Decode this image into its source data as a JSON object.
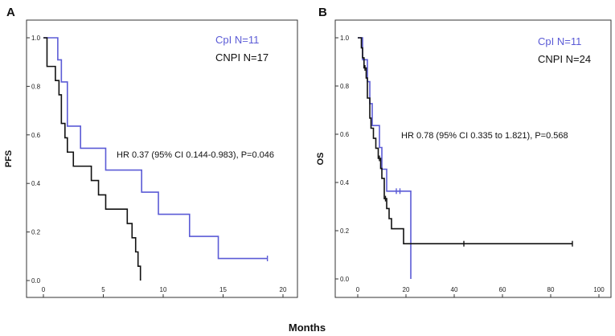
{
  "figure": {
    "shared_xlabel": "Months"
  },
  "colors": {
    "cpi": "#5b5bd6",
    "cnpi": "#111111",
    "frame": "#333333"
  },
  "chart_data": [
    {
      "type": "line",
      "step": true,
      "panel_label": "A",
      "title": "",
      "xlabel": "Months",
      "ylabel": "PFS",
      "xlim": [
        0,
        20
      ],
      "ylim": [
        0,
        1
      ],
      "xticks": [
        0,
        5,
        10,
        15,
        20
      ],
      "yticks": [
        0.0,
        0.2,
        0.4,
        0.6,
        0.8,
        1.0
      ],
      "xtick_labels": [
        "0",
        "5",
        "10",
        "15",
        "20"
      ],
      "ytick_labels": [
        "0.0",
        "0.2",
        "0.4",
        "0.6",
        "0.8",
        "1.0"
      ],
      "legend": [
        {
          "label": "CpI N=11",
          "color": "#5b5bd6"
        },
        {
          "label": "CNPI N=17",
          "color": "#111111"
        }
      ],
      "annotation": "HR 0.37 (95% CI 0.144-0.983), P=0.046",
      "series": [
        {
          "name": "CpI N=11",
          "color": "#5b5bd6",
          "steps": [
            [
              0,
              1.0
            ],
            [
              1.2,
              0.909
            ],
            [
              1.5,
              0.818
            ],
            [
              2.0,
              0.636
            ],
            [
              3.1,
              0.545
            ],
            [
              5.2,
              0.455
            ],
            [
              8.2,
              0.364
            ],
            [
              9.6,
              0.273
            ],
            [
              12.2,
              0.182
            ],
            [
              14.6,
              0.091
            ]
          ],
          "end": 18.7,
          "censored": [
            18.7
          ]
        },
        {
          "name": "CNPI N=17",
          "color": "#111111",
          "steps": [
            [
              0,
              1.0
            ],
            [
              0.3,
              0.882
            ],
            [
              1.0,
              0.824
            ],
            [
              1.3,
              0.765
            ],
            [
              1.5,
              0.647
            ],
            [
              1.8,
              0.588
            ],
            [
              2.0,
              0.529
            ],
            [
              2.5,
              0.471
            ],
            [
              4.0,
              0.412
            ],
            [
              4.6,
              0.353
            ],
            [
              5.2,
              0.294
            ],
            [
              7.0,
              0.235
            ],
            [
              7.4,
              0.176
            ],
            [
              7.7,
              0.118
            ],
            [
              7.9,
              0.059
            ],
            [
              8.1,
              0.0
            ]
          ],
          "end": 8.1,
          "censored": []
        }
      ]
    },
    {
      "type": "line",
      "step": true,
      "panel_label": "B",
      "title": "",
      "xlabel": "Months",
      "ylabel": "OS",
      "xlim": [
        0,
        100
      ],
      "ylim": [
        0,
        1
      ],
      "xticks": [
        0,
        20,
        40,
        60,
        80,
        100
      ],
      "yticks": [
        0.0,
        0.2,
        0.4,
        0.6,
        0.8,
        1.0
      ],
      "xtick_labels": [
        "0",
        "20",
        "40",
        "60",
        "80",
        "100"
      ],
      "ytick_labels": [
        "0.0",
        "0.2",
        "0.4",
        "0.6",
        "0.8",
        "1.0"
      ],
      "legend": [
        {
          "label": "CpI N=11",
          "color": "#5b5bd6"
        },
        {
          "label": "CNPI N=24",
          "color": "#111111"
        }
      ],
      "annotation": "HR 0.78 (95% CI 0.335 to 1.821), P=0.568",
      "series": [
        {
          "name": "CpI N=11",
          "color": "#5b5bd6",
          "steps": [
            [
              0,
              1.0
            ],
            [
              2.0,
              0.909
            ],
            [
              4.0,
              0.818
            ],
            [
              5.0,
              0.727
            ],
            [
              6.0,
              0.636
            ],
            [
              9.0,
              0.545
            ],
            [
              10.0,
              0.455
            ],
            [
              12.0,
              0.364
            ],
            [
              22.0,
              0.0
            ]
          ],
          "end": 22.0,
          "censored": [
            16.0,
            17.5
          ]
        },
        {
          "name": "CNPI N=24",
          "color": "#111111",
          "steps": [
            [
              0,
              1.0
            ],
            [
              1.5,
              0.958
            ],
            [
              2.0,
              0.917
            ],
            [
              2.6,
              0.875
            ],
            [
              3.5,
              0.833
            ],
            [
              4.0,
              0.75
            ],
            [
              5.0,
              0.667
            ],
            [
              5.5,
              0.625
            ],
            [
              6.5,
              0.583
            ],
            [
              7.5,
              0.542
            ],
            [
              8.5,
              0.5
            ],
            [
              9.5,
              0.458
            ],
            [
              10.0,
              0.417
            ],
            [
              11.0,
              0.333
            ],
            [
              12.0,
              0.292
            ],
            [
              13.0,
              0.25
            ],
            [
              14.0,
              0.208
            ],
            [
              19.0,
              0.146
            ]
          ],
          "end": 89.0,
          "censored": [
            3.0,
            9.0,
            11.5,
            44.0,
            89.0
          ]
        }
      ]
    }
  ]
}
